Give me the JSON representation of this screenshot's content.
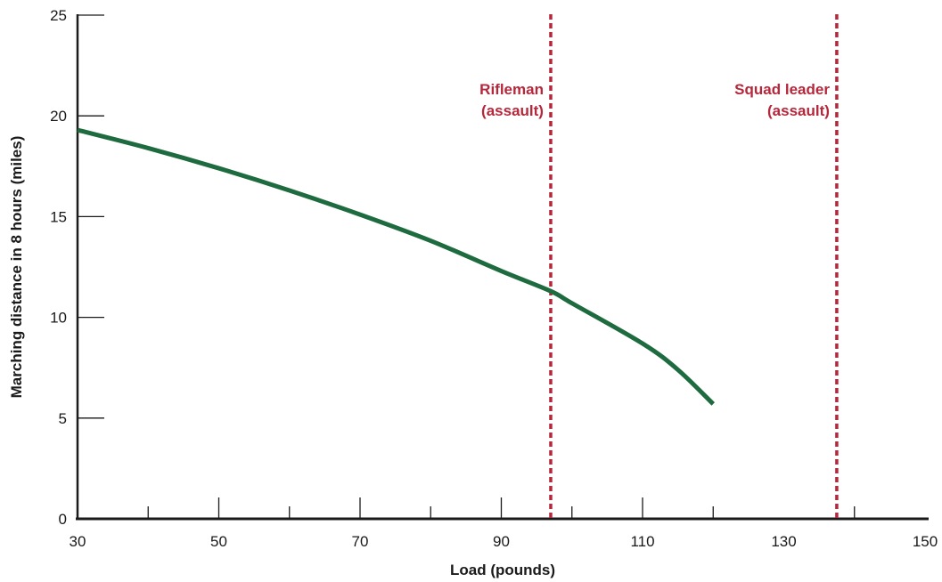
{
  "chart_data": {
    "type": "line",
    "title": "",
    "xlabel": "Load (pounds)",
    "ylabel": "Marching distance in 8 hours (miles)",
    "xlim": [
      30,
      150
    ],
    "ylim": [
      0,
      25
    ],
    "x_ticks": [
      30,
      50,
      70,
      90,
      110,
      130,
      150
    ],
    "y_ticks": [
      0,
      5,
      10,
      15,
      20,
      25
    ],
    "x_minor_ticks": [
      40,
      50,
      60,
      70,
      80,
      90,
      100,
      110,
      120,
      140
    ],
    "grid": false,
    "series": [
      {
        "color": "#1d6b3e",
        "x": [
          30,
          40,
          50,
          60,
          70,
          80,
          90,
          97,
          100,
          110,
          115,
          120
        ],
        "y": [
          19.3,
          18.4,
          17.4,
          16.3,
          15.1,
          13.8,
          12.3,
          11.3,
          10.7,
          8.7,
          7.4,
          5.7
        ]
      }
    ],
    "reference_lines": [
      {
        "x": 97,
        "label": [
          "Rifleman",
          "(assault)"
        ],
        "color": "#b5273a",
        "style": "dotted"
      },
      {
        "x": 137.5,
        "label": [
          "Squad leader",
          "(assault)"
        ],
        "color": "#b5273a",
        "style": "dotted"
      }
    ]
  }
}
